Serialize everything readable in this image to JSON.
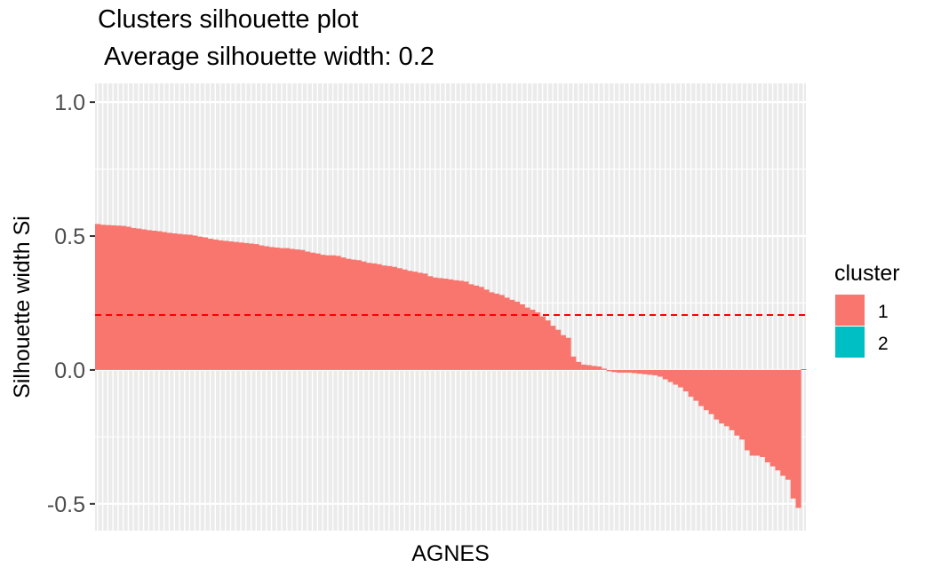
{
  "chart_data": {
    "type": "bar",
    "title": "Clusters silhouette plot",
    "subtitle": "Average silhouette width: 0.2",
    "xlabel": "AGNES",
    "ylabel": "Silhouette width Si",
    "ylim": [
      -0.6,
      1.07
    ],
    "yticks": [
      {
        "value": -0.5,
        "label": "-0.5"
      },
      {
        "value": 0.0,
        "label": "0.0"
      },
      {
        "value": 0.5,
        "label": "0.5"
      },
      {
        "value": 1.0,
        "label": "1.0"
      }
    ],
    "average_line": 0.205,
    "average_line_color": "#ff0000",
    "legend": {
      "title": "cluster",
      "position": "right",
      "entries": [
        {
          "label": "1",
          "color": "#f8766d"
        },
        {
          "label": "2",
          "color": "#00bfc4"
        }
      ]
    },
    "series": [
      {
        "name": "1",
        "color": "#f8766d",
        "values": [
          0.545,
          0.542,
          0.541,
          0.54,
          0.539,
          0.538,
          0.535,
          0.53,
          0.528,
          0.525,
          0.522,
          0.52,
          0.518,
          0.515,
          0.512,
          0.51,
          0.508,
          0.506,
          0.505,
          0.502,
          0.498,
          0.495,
          0.49,
          0.487,
          0.484,
          0.482,
          0.48,
          0.478,
          0.476,
          0.474,
          0.472,
          0.47,
          0.465,
          0.462,
          0.459,
          0.457,
          0.455,
          0.455,
          0.452,
          0.45,
          0.448,
          0.442,
          0.438,
          0.435,
          0.43,
          0.428,
          0.428,
          0.426,
          0.42,
          0.415,
          0.412,
          0.41,
          0.405,
          0.4,
          0.398,
          0.395,
          0.39,
          0.388,
          0.385,
          0.38,
          0.375,
          0.37,
          0.367,
          0.363,
          0.36,
          0.35,
          0.345,
          0.343,
          0.341,
          0.338,
          0.335,
          0.333,
          0.33,
          0.32,
          0.315,
          0.31,
          0.3,
          0.29,
          0.285,
          0.28,
          0.27,
          0.262,
          0.255,
          0.245,
          0.233,
          0.225,
          0.215,
          0.2,
          0.185,
          0.165,
          0.15,
          0.13,
          0.12,
          0.05,
          0.03,
          0.02,
          0.018,
          0.015,
          0.013,
          0.005,
          -0.005,
          -0.008,
          -0.01,
          -0.01,
          -0.01,
          -0.012,
          -0.014,
          -0.016,
          -0.018,
          -0.02,
          -0.025,
          -0.035,
          -0.045,
          -0.055,
          -0.065,
          -0.08,
          -0.1,
          -0.115,
          -0.135,
          -0.15,
          -0.165,
          -0.185,
          -0.2,
          -0.21,
          -0.225,
          -0.245,
          -0.26,
          -0.3,
          -0.32,
          -0.32,
          -0.325,
          -0.345,
          -0.36,
          -0.375,
          -0.395,
          -0.41,
          -0.48,
          -0.515
        ]
      },
      {
        "name": "2",
        "color": "#00bfc4",
        "values": [
          0.003
        ]
      }
    ]
  }
}
